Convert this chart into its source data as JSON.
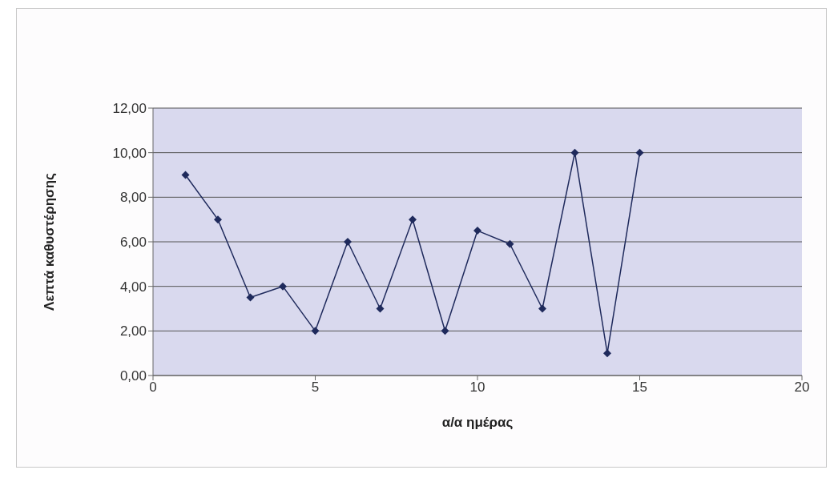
{
  "chart_data": {
    "type": "line",
    "xlabel": "α/α ημέρας",
    "ylabel": "Λεπτά καθυστέρησης",
    "x": [
      1,
      2,
      3,
      4,
      5,
      6,
      7,
      8,
      9,
      10,
      11,
      12,
      13,
      14,
      15
    ],
    "series": [
      {
        "color": "#1f2a5c",
        "values": [
          9,
          7,
          3.5,
          4,
          2,
          6,
          3,
          7,
          2,
          6.5,
          5.9,
          3,
          10,
          1,
          10
        ]
      }
    ],
    "xlim": [
      0,
      20
    ],
    "xticks": [
      0,
      5,
      10,
      15,
      20
    ],
    "ylim": [
      0,
      12
    ],
    "yticks": [
      {
        "value": 0,
        "label": "0,00"
      },
      {
        "value": 2,
        "label": "2,00"
      },
      {
        "value": 4,
        "label": "4,00"
      },
      {
        "value": 6,
        "label": "6,00"
      },
      {
        "value": 8,
        "label": "8,00"
      },
      {
        "value": 10,
        "label": "10,00"
      },
      {
        "value": 12,
        "label": "12,00"
      }
    ],
    "grid": "y",
    "legend": false,
    "marker": "diamond",
    "line_style": "solid"
  }
}
